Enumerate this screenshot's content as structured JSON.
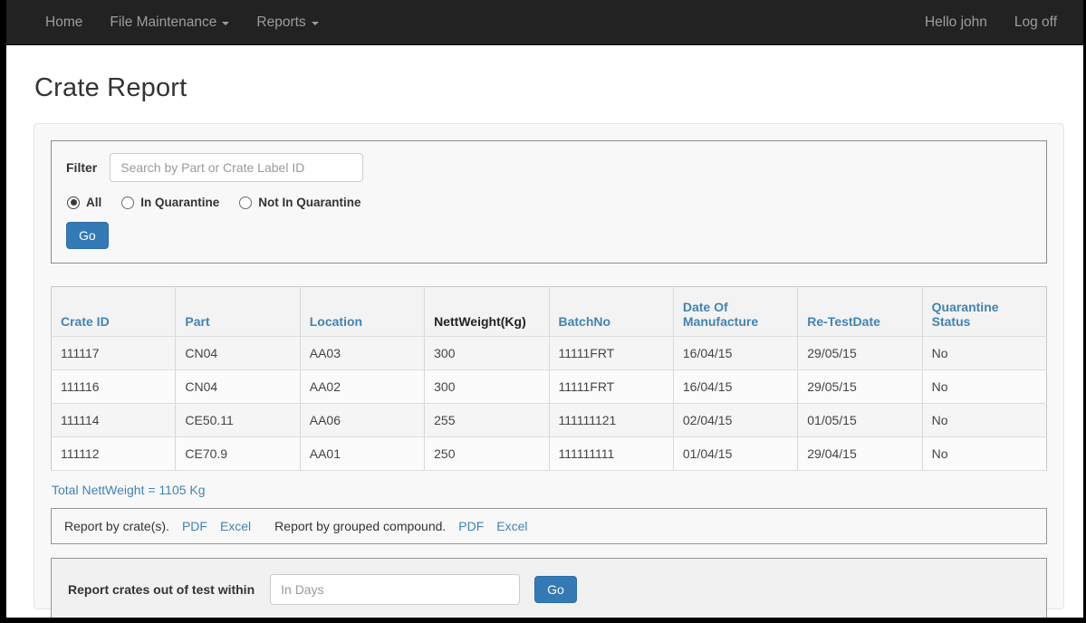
{
  "navbar": {
    "items": [
      {
        "label": "Home",
        "has_caret": false
      },
      {
        "label": "File Maintenance",
        "has_caret": true
      },
      {
        "label": "Reports",
        "has_caret": true
      }
    ],
    "greeting": "Hello john",
    "logoff": "Log off"
  },
  "page": {
    "title": "Crate Report"
  },
  "filter": {
    "label": "Filter",
    "search_placeholder": "Search by Part or Crate Label ID",
    "radios": [
      {
        "label": "All",
        "checked": true
      },
      {
        "label": "In Quarantine",
        "checked": false
      },
      {
        "label": "Not In Quarantine",
        "checked": false
      }
    ],
    "go_label": "Go"
  },
  "table": {
    "columns": [
      {
        "label": "Crate ID",
        "link": true
      },
      {
        "label": "Part",
        "link": true
      },
      {
        "label": "Location",
        "link": true
      },
      {
        "label": "NettWeight(Kg)",
        "link": false
      },
      {
        "label": "BatchNo",
        "link": true
      },
      {
        "label": "Date Of Manufacture",
        "link": true
      },
      {
        "label": "Re-TestDate",
        "link": true
      },
      {
        "label": "Quarantine Status",
        "link": true
      }
    ],
    "rows": [
      [
        "111117",
        "CN04",
        "AA03",
        "300",
        "11111FRT",
        "16/04/15",
        "29/05/15",
        "No"
      ],
      [
        "111116",
        "CN04",
        "AA02",
        "300",
        "11111FRT",
        "16/04/15",
        "29/05/15",
        "No"
      ],
      [
        "111114",
        "CE50.11",
        "AA06",
        "255",
        "111111121",
        "02/04/15",
        "01/05/15",
        "No"
      ],
      [
        "111112",
        "CE70.9",
        "AA01",
        "250",
        "111111111",
        "01/04/15",
        "29/04/15",
        "No"
      ]
    ]
  },
  "summary": {
    "total_text": "Total NettWeight = 1105 Kg"
  },
  "reports": {
    "by_crates_label": "Report by crate(s).",
    "by_crates_pdf": "PDF",
    "by_crates_excel": "Excel",
    "grouped_label": "Report by grouped compound.",
    "grouped_pdf": "PDF",
    "grouped_excel": "Excel"
  },
  "out_of_test": {
    "label": "Report crates out of test within",
    "placeholder": "In Days",
    "go_label": "Go"
  },
  "colors": {
    "accent": "#337ab7",
    "link": "#4383b2",
    "navbar_bg": "#222222"
  }
}
